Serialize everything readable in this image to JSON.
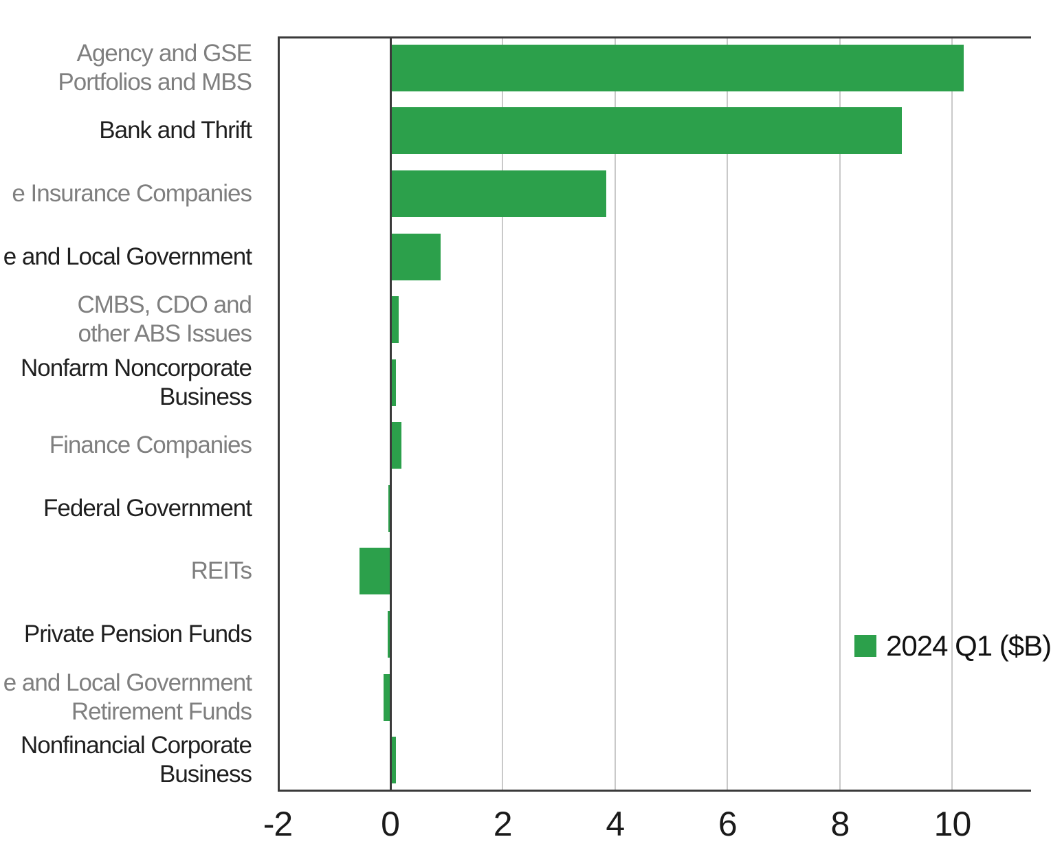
{
  "chart_data": {
    "type": "bar",
    "orientation": "horizontal",
    "title": "",
    "xlabel": "",
    "ylabel": "",
    "xlim": [
      -2,
      11.4
    ],
    "xticks": [
      -2,
      0,
      2,
      4,
      6,
      8,
      10
    ],
    "grid": true,
    "categories": [
      "Agency and GSE\nPortfolios and MBS",
      "Bank and Thrift",
      "e Insurance Companies",
      "e and Local Government",
      "CMBS, CDO and\nother ABS Issues",
      "Nonfarm Noncorporate\nBusiness",
      "Finance Companies",
      "Federal Government",
      "REITs",
      "Private Pension Funds",
      "e and Local Government\nRetirement Funds",
      "Nonfinancial Corporate\nBusiness"
    ],
    "values": [
      10.2,
      9.1,
      3.85,
      0.9,
      0.15,
      0.1,
      0.2,
      -0.03,
      -0.55,
      -0.04,
      -0.12,
      0.1
    ],
    "category_text_colors": [
      "#7f7f7f",
      "#1f1f1f",
      "#7f7f7f",
      "#1f1f1f",
      "#7f7f7f",
      "#1f1f1f",
      "#7f7f7f",
      "#1f1f1f",
      "#7f7f7f",
      "#1f1f1f",
      "#7f7f7f",
      "#1f1f1f"
    ],
    "series": [
      {
        "name": "2024 Q1 ($B)",
        "values": [
          10.2,
          9.1,
          3.85,
          0.9,
          0.15,
          0.1,
          0.2,
          -0.03,
          -0.55,
          -0.04,
          -0.12,
          0.1
        ]
      }
    ],
    "legend": {
      "label": "2024 Q1 ($B)",
      "position": "middle-right",
      "swatch_color": "#2ca04b"
    },
    "colors": {
      "bar": "#2ca04b",
      "gridline": "#c9c9c9",
      "axis_frame": "#3a3a3a",
      "zero_line": "#3a3a3a",
      "tick_text": "#1a1a1a",
      "background": "#ffffff"
    }
  }
}
